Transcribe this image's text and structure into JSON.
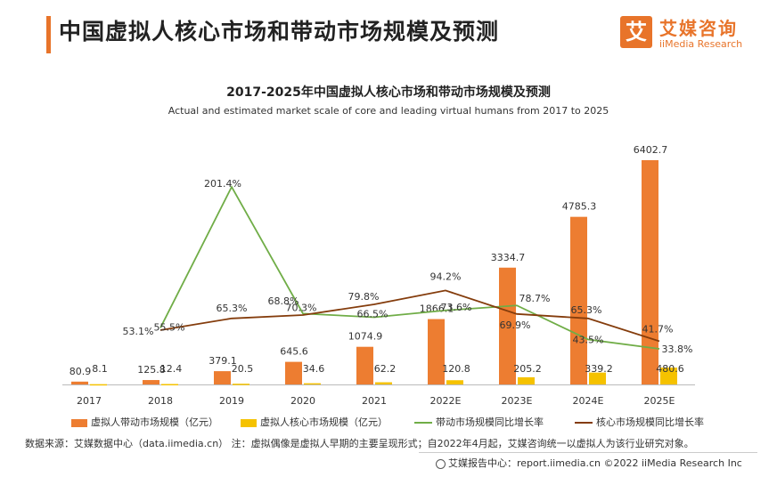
{
  "header": {
    "title": "中国虚拟人核心市场和带动市场规模及预测"
  },
  "brand": {
    "logo_char": "艾",
    "name_cn": "艾媒咨询",
    "name_en": "iiMedia Research"
  },
  "colors": {
    "accent": "#e8742a",
    "bar_driven": "#ed7d31",
    "bar_core": "#f5c200",
    "line_driven_growth": "#70ad47",
    "line_core_growth": "#843c0c"
  },
  "chart_data": {
    "type": "bar",
    "title": "2017-2025年中国虚拟人核心市场和带动市场规模及预测",
    "subtitle": "Actual and estimated market scale of core and leading virtual humans from 2017 to 2025",
    "categories": [
      "2017",
      "2018",
      "2019",
      "2020",
      "2021",
      "2022E",
      "2023E",
      "2024E",
      "2025E"
    ],
    "bar_series": [
      {
        "name": "虚拟人带动市场规模（亿元）",
        "values": [
          80.9,
          125.8,
          379.1,
          645.6,
          1074.9,
          1866.1,
          3334.7,
          4785.3,
          6402.7
        ],
        "labels": [
          "80.9",
          "125.8",
          "379.1",
          "645.6",
          "1074.9",
          "1866.1",
          "3334.7",
          "4785.3",
          "6402.7"
        ]
      },
      {
        "name": "虚拟人核心市场规模（亿元）",
        "values": [
          8.1,
          12.4,
          20.5,
          34.6,
          62.2,
          120.8,
          205.2,
          339.2,
          480.6
        ],
        "labels": [
          "8.1",
          "12.4",
          "20.5",
          "34.6",
          "62.2",
          "120.8",
          "205.2",
          "339.2",
          "480.6"
        ]
      }
    ],
    "line_series": [
      {
        "name": "带动市场规模同比增长率",
        "values": [
          null,
          55.5,
          201.4,
          70.3,
          66.5,
          73.6,
          78.7,
          43.5,
          33.8
        ],
        "labels": [
          "",
          "55.5%",
          "201.4%",
          "70.3%",
          "66.5%",
          "73.6%",
          "78.7%",
          "43.5%",
          "33.8%"
        ]
      },
      {
        "name": "核心市场规模同比增长率",
        "values": [
          null,
          53.1,
          65.3,
          68.8,
          79.8,
          94.2,
          69.9,
          65.3,
          41.7
        ],
        "labels": [
          "",
          "53.1%",
          "65.3%",
          "68.8%",
          "79.8%",
          "94.2%",
          "69.9%",
          "65.3%",
          "41.7%"
        ]
      }
    ],
    "grid": false,
    "legend_position": "bottom"
  },
  "source": "数据来源：艾媒数据中心（data.iimedia.cn）   注：虚拟偶像是虚拟人早期的主要呈现形式；自2022年4月起，艾媒咨询统一以虚拟人为该行业研究对象。",
  "footer": "艾媒报告中心：report.iimedia.cn   ©2022 iiMedia Research Inc"
}
